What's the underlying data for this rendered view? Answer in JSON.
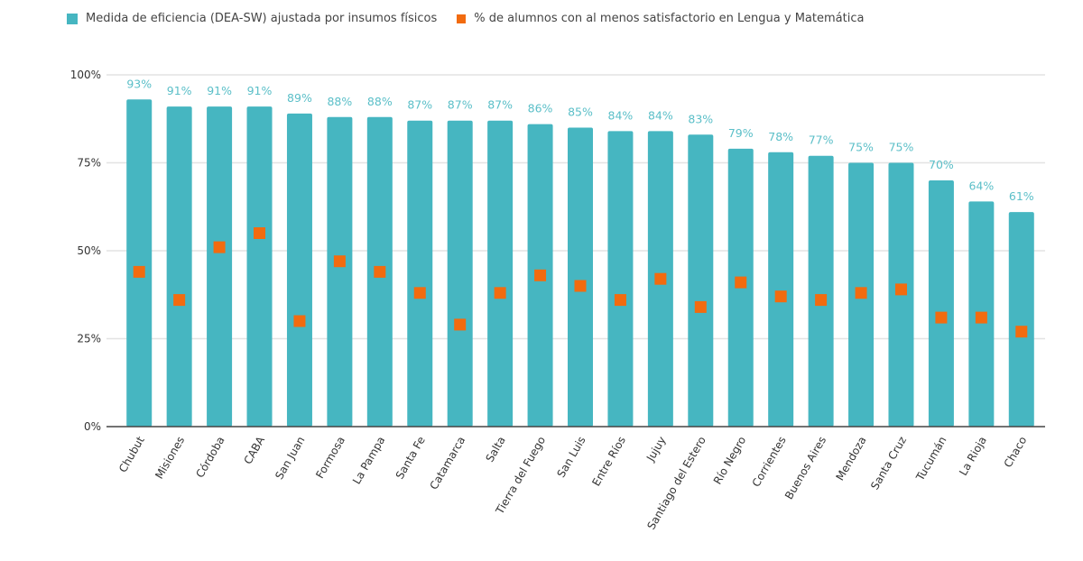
{
  "chart_data": {
    "type": "bar",
    "categories": [
      "Chubut",
      "Misiones",
      "Córdoba",
      "CABA",
      "San Juan",
      "Formosa",
      "La Pampa",
      "Santa Fe",
      "Catamarca",
      "Salta",
      "Tierra del Fuego",
      "San Luis",
      "Entre Ríos",
      "Jujuy",
      "Santiago del Estero",
      "Río Negro",
      "Corrientes",
      "Buenos Aires",
      "Mendoza",
      "Santa Cruz",
      "Tucumán",
      "La Rioja",
      "Chaco"
    ],
    "series": [
      {
        "name": "Medida de eficiencia (DEA-SW) ajustada por insumos físicos",
        "type": "bar",
        "color": "#46b6c1",
        "values": [
          93,
          91,
          91,
          91,
          89,
          88,
          88,
          87,
          87,
          87,
          86,
          85,
          84,
          84,
          83,
          79,
          78,
          77,
          75,
          75,
          70,
          64,
          61
        ],
        "labels": [
          "93%",
          "91%",
          "91%",
          "91%",
          "89%",
          "88%",
          "88%",
          "87%",
          "87%",
          "87%",
          "86%",
          "85%",
          "84%",
          "84%",
          "83%",
          "79%",
          "78%",
          "77%",
          "75%",
          "75%",
          "70%",
          "64%",
          "61%"
        ]
      },
      {
        "name": "% de alumnos con al menos satisfactorio en Lengua y Matemática",
        "type": "scatter",
        "marker": "square",
        "color": "#f26b0f",
        "values": [
          44,
          36,
          51,
          55,
          30,
          47,
          44,
          38,
          29,
          38,
          43,
          40,
          36,
          42,
          34,
          41,
          37,
          36,
          38,
          39,
          31,
          31,
          27
        ]
      }
    ],
    "ylim": [
      0,
      100
    ],
    "yticks": [
      "0%",
      "25%",
      "50%",
      "75%",
      "100%"
    ],
    "ytick_values": [
      0,
      25,
      50,
      75,
      100
    ],
    "grid": true,
    "legend_position": "top-left",
    "title": "",
    "xlabel": "",
    "ylabel": ""
  }
}
